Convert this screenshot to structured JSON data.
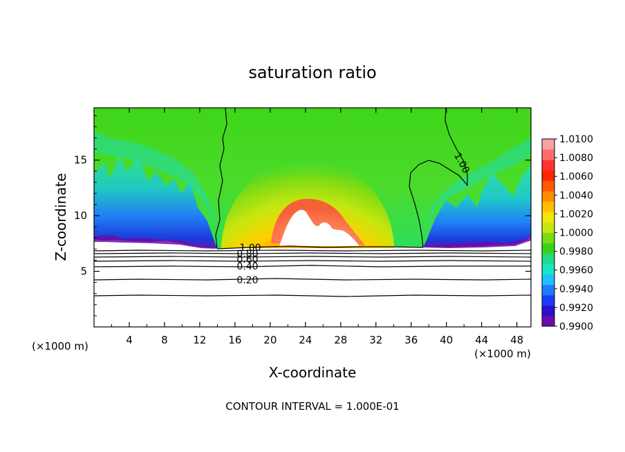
{
  "chart_data": {
    "type": "heatmap",
    "title": "saturation ratio",
    "xlabel": "X-coordinate",
    "ylabel": "Z-coordinate",
    "x_unit_left": "(×1000 m)",
    "x_unit_right": "(×1000 m)",
    "footer": "CONTOUR INTERVAL = 1.000E-01",
    "xlim": [
      0,
      49.6
    ],
    "ylim": [
      0,
      19.7
    ],
    "xticks": [
      4,
      8,
      12,
      16,
      20,
      24,
      28,
      32,
      36,
      40,
      44,
      48
    ],
    "yticks": [
      5,
      10,
      15
    ],
    "colorbar": {
      "range": [
        0.99,
        1.01
      ],
      "ticks": [
        "0.9900",
        "0.9920",
        "0.9940",
        "0.9960",
        "0.9980",
        "1.0000",
        "1.0020",
        "1.0040",
        "1.0060",
        "1.0080",
        "1.0100"
      ],
      "colors": [
        "#6a0dad",
        "#2a10c8",
        "#1a3aff",
        "#1f7bff",
        "#1ec0ff",
        "#18e6c6",
        "#21d98a",
        "#35d318",
        "#7bdb13",
        "#c8e60f",
        "#f0e60a",
        "#ffbf00",
        "#ff8c00",
        "#ff5a00",
        "#ff2500",
        "#ff3333",
        "#ff6b6b",
        "#ffa0a0"
      ]
    },
    "contour_labels": [
      "1.00",
      "0.80",
      "0.60",
      "0.40",
      "0.20",
      "1.00"
    ],
    "contour_line_levels_km": [
      7.05,
      6.85,
      6.6,
      6.35,
      6.0,
      5.6,
      4.3,
      2.9
    ]
  }
}
